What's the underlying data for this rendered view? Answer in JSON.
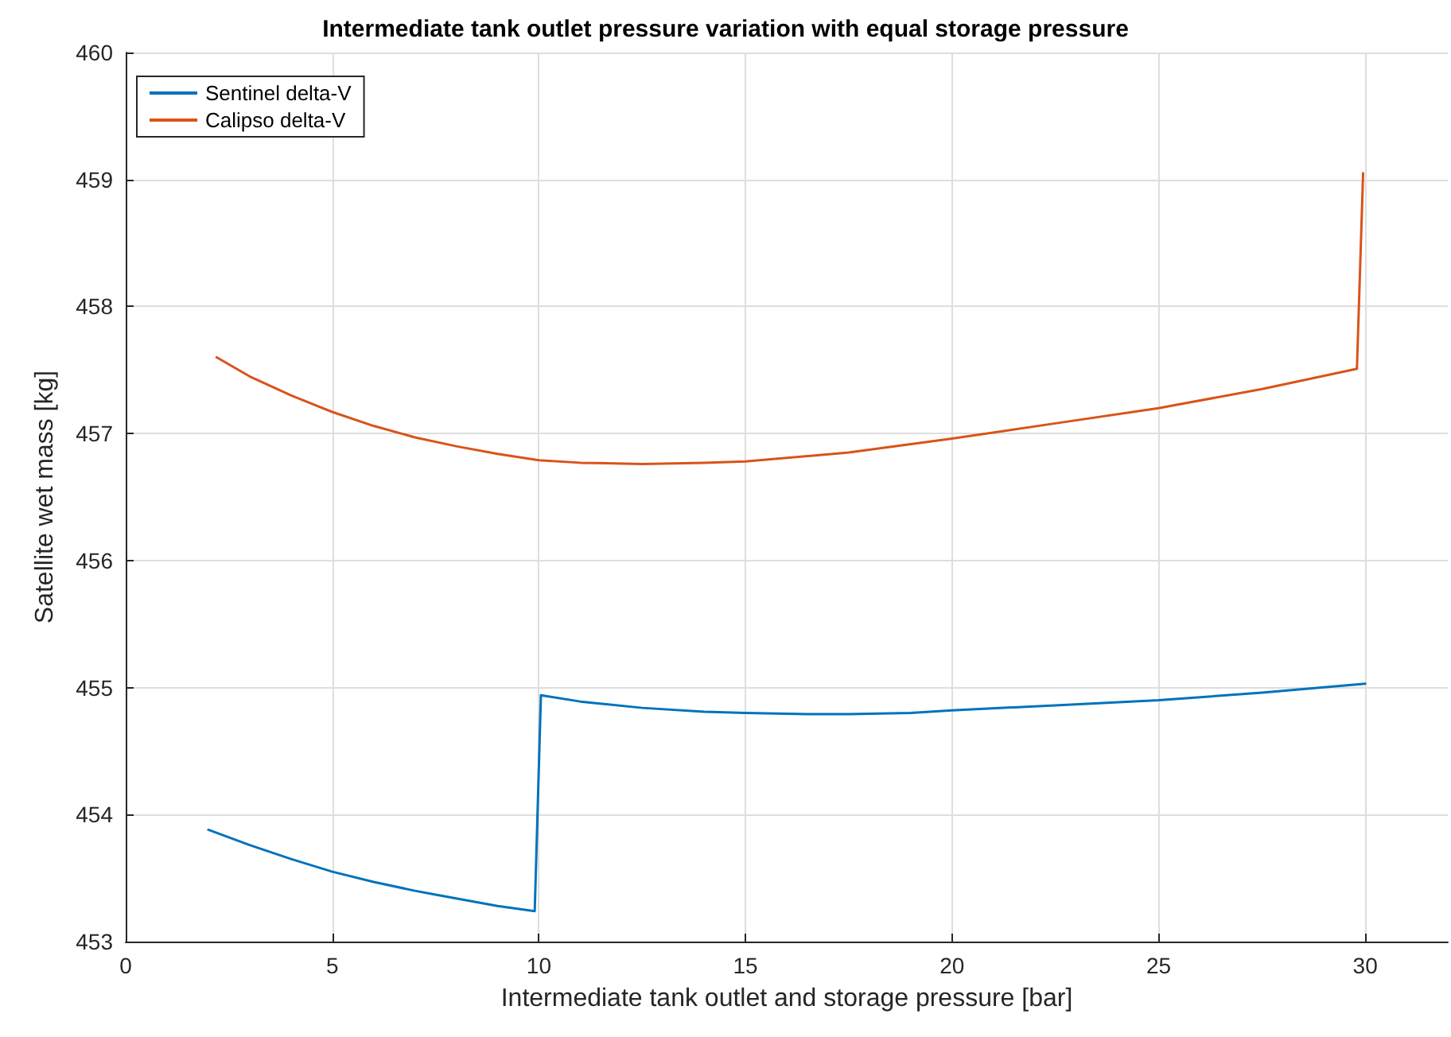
{
  "chart_data": {
    "type": "line",
    "title": "Intermediate tank outlet pressure variation with equal storage pressure",
    "xlabel": "Intermediate tank outlet and storage pressure [bar]",
    "ylabel": "Satellite wet mass [kg]",
    "xlim": [
      0,
      32
    ],
    "xticks": [
      0,
      5,
      10,
      15,
      20,
      25,
      30
    ],
    "ylim": [
      453,
      460
    ],
    "yticks": [
      453,
      454,
      455,
      456,
      457,
      458,
      459,
      460
    ],
    "grid": true,
    "legend": "top left",
    "marker": "none",
    "line_style": "solid",
    "series": [
      {
        "name": "Sentinel delta-V",
        "color": "#0072bd",
        "x": [
          2,
          3,
          4,
          5,
          6,
          7,
          7.5,
          8,
          9,
          9.9,
          10.05,
          11,
          12.5,
          14,
          15,
          16.5,
          17.5,
          19,
          20,
          22.5,
          25,
          27.5,
          30
        ],
        "values": [
          453.88,
          453.76,
          453.65,
          453.55,
          453.47,
          453.4,
          453.37,
          453.34,
          453.28,
          453.24,
          454.94,
          454.89,
          454.84,
          454.81,
          454.8,
          454.79,
          454.79,
          454.8,
          454.82,
          454.86,
          454.9,
          454.96,
          455.03
        ]
      },
      {
        "name": "Calipso delta-V",
        "color": "#d95319",
        "x": [
          2.2,
          3,
          4,
          5,
          6,
          7,
          8,
          9,
          10,
          11,
          12.5,
          14,
          15,
          17.5,
          20,
          22.5,
          25,
          27.5,
          29.8,
          29.95
        ],
        "values": [
          457.6,
          457.45,
          457.3,
          457.17,
          457.06,
          456.97,
          456.9,
          456.84,
          456.79,
          456.77,
          456.76,
          456.77,
          456.78,
          456.85,
          456.96,
          457.08,
          457.2,
          457.35,
          457.51,
          459.05
        ]
      }
    ]
  }
}
